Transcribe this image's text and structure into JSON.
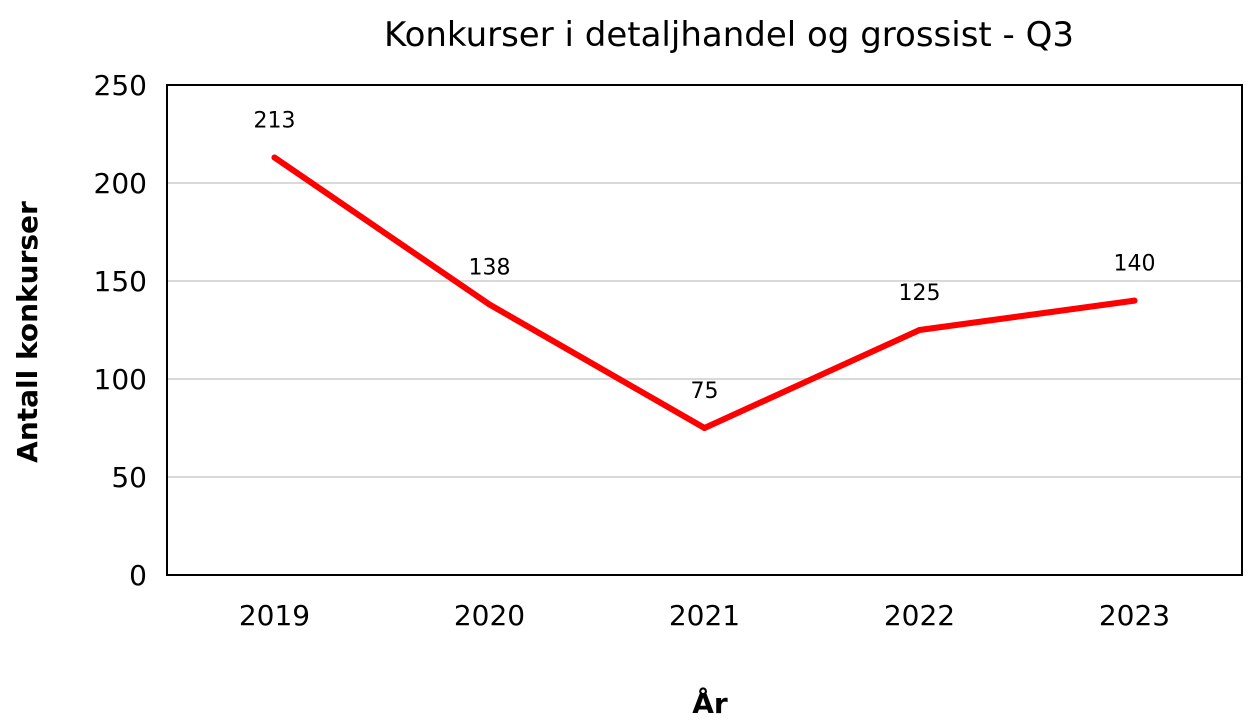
{
  "chart_data": {
    "type": "line",
    "title": "Konkurser i detaljhandel og grossist - Q3",
    "xlabel": "År",
    "ylabel": "Antall konkurser",
    "categories": [
      "2019",
      "2020",
      "2021",
      "2022",
      "2023"
    ],
    "series": [
      {
        "values": [
          213,
          138,
          75,
          125,
          140
        ],
        "color": "#ff0000"
      }
    ],
    "data_labels": [
      "213",
      "138",
      "75",
      "125",
      "140"
    ],
    "ylim": [
      0,
      250
    ],
    "yticks": [
      0,
      50,
      100,
      150,
      200,
      250
    ],
    "ytick_labels": [
      "0",
      "50",
      "100",
      "150",
      "200",
      "250"
    ],
    "grid": true,
    "legend": "none"
  }
}
